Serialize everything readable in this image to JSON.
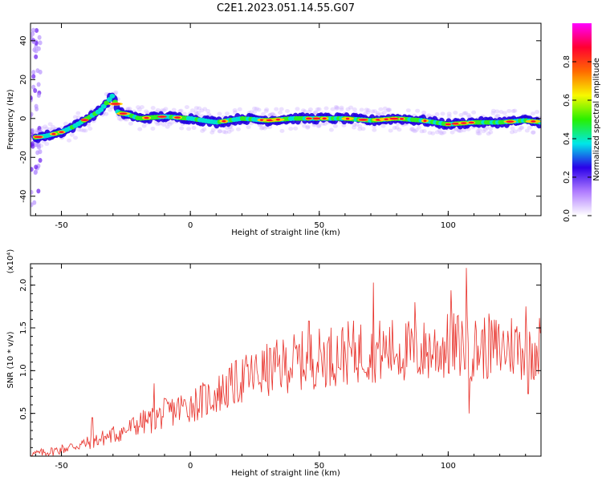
{
  "title": "C2E1.2023.051.14.55.G07",
  "colors": {
    "snr_line": "#e8312a",
    "frame": "#000000",
    "background": "#ffffff"
  },
  "chart_data": [
    {
      "type": "heatmap",
      "xlabel": "Height of straight line (km)",
      "ylabel": "Frequency (Hz)",
      "xlim": [
        -62,
        136
      ],
      "ylim": [
        -50,
        49
      ],
      "xticks": [
        -50,
        0,
        50,
        100
      ],
      "yticks": [
        -40,
        -20,
        0,
        20,
        40
      ],
      "colorbar": {
        "label": "Normalized spectral amplitude",
        "range": [
          0,
          1
        ],
        "ticks": [
          0.0,
          0.2,
          0.4,
          0.6,
          0.8
        ],
        "colormap": [
          "#ffffff",
          "#b07cff",
          "#2a00e8",
          "#00e8e8",
          "#28f000",
          "#f8f800",
          "#ff6a00",
          "#ff0030",
          "#ff00ff"
        ]
      },
      "ridge": {
        "x": [
          -62,
          -56,
          -50,
          -45,
          -40,
          -35,
          -30,
          -28,
          -24,
          -20,
          -10,
          0,
          10,
          20,
          30,
          40,
          50,
          60,
          70,
          80,
          90,
          100,
          110,
          120,
          130,
          136
        ],
        "y": [
          -10,
          -9,
          -7,
          -4,
          0,
          4,
          12,
          3,
          2,
          0,
          1,
          0,
          -2,
          0,
          -1,
          0,
          0,
          0,
          -1,
          0,
          -1,
          -3,
          -2,
          -2,
          -1,
          -2
        ]
      }
    },
    {
      "type": "line",
      "xlabel": "Height of straight line (km)",
      "ylabel": "SNR (10 * v/v)",
      "yscale_label": "(x10⁴)",
      "xlim": [
        -62,
        136
      ],
      "ylim": [
        0.0,
        2.25
      ],
      "xticks": [
        -50,
        0,
        50,
        100
      ],
      "yticks": [
        0.5,
        1.0,
        1.5,
        2.0
      ],
      "series": [
        {
          "x": [
            -62,
            -55,
            -50,
            -45,
            -40,
            -35,
            -30,
            -25,
            -20,
            -15,
            -10,
            -5,
            0,
            5,
            10,
            15,
            20,
            25,
            30,
            35,
            40,
            45,
            50,
            55,
            60,
            65,
            70,
            75,
            80,
            85,
            90,
            95,
            100,
            105,
            110,
            115,
            120,
            125,
            130,
            136
          ],
          "y": [
            0.02,
            0.05,
            0.08,
            0.12,
            0.15,
            0.2,
            0.25,
            0.3,
            0.38,
            0.42,
            0.5,
            0.55,
            0.6,
            0.65,
            0.72,
            0.8,
            0.9,
            0.95,
            1.0,
            1.05,
            1.1,
            1.12,
            1.15,
            1.18,
            1.2,
            1.22,
            1.25,
            1.22,
            1.25,
            1.22,
            1.22,
            1.25,
            1.28,
            1.3,
            1.25,
            1.28,
            1.25,
            1.3,
            1.25,
            1.28
          ],
          "peaks": [
            [
              -38,
              0.45
            ],
            [
              -14,
              0.85
            ],
            [
              46,
              1.58
            ],
            [
              71,
              2.03
            ],
            [
              87,
              1.8
            ],
            [
              101,
              1.94
            ],
            [
              107,
              2.2
            ],
            [
              108,
              0.5
            ],
            [
              130,
              1.75
            ],
            [
              131,
              0.73
            ]
          ]
        }
      ]
    }
  ]
}
